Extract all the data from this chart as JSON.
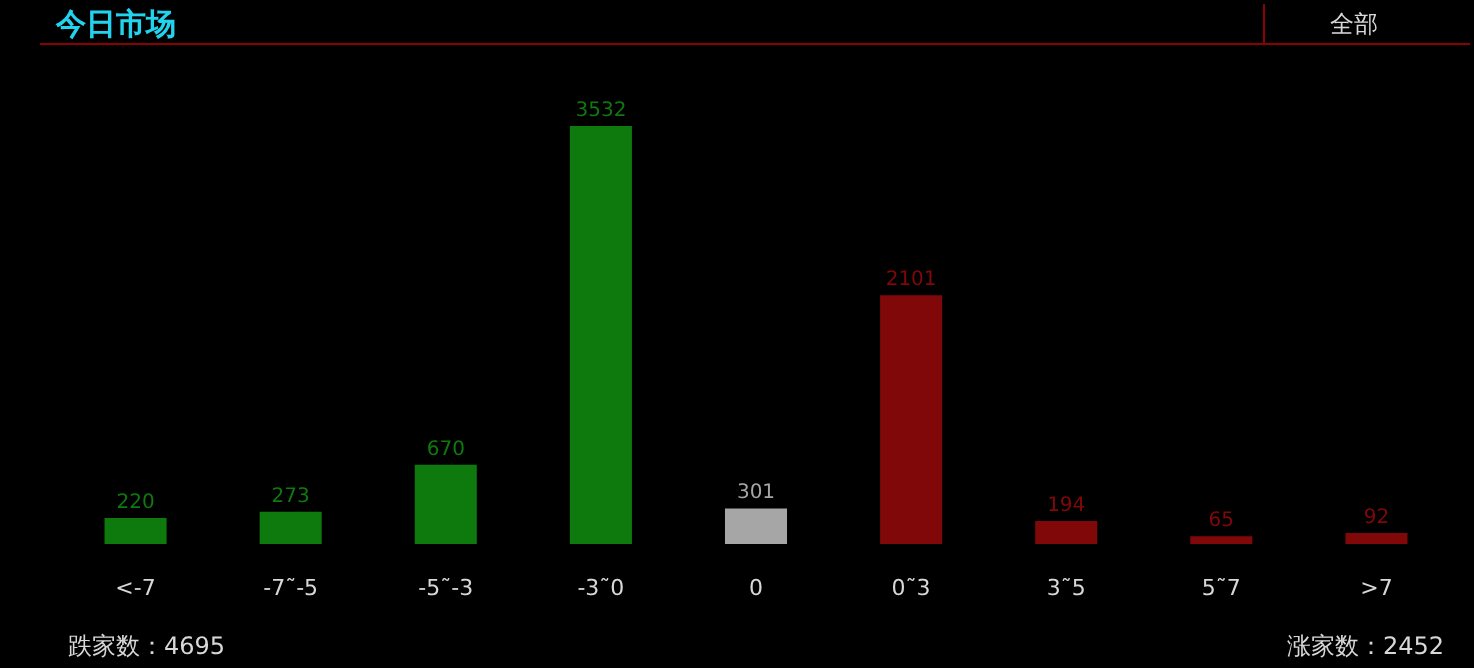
{
  "chart_data": {
    "type": "bar",
    "title": "今日市场",
    "categories": [
      "<-7",
      "-7˜-5",
      "-5˜-3",
      "-3˜0",
      "0",
      "0˜3",
      "3˜5",
      "5˜7",
      ">7"
    ],
    "values": [
      220,
      273,
      670,
      3532,
      301,
      2101,
      194,
      65,
      92
    ],
    "colors": [
      "#0e7a0e",
      "#0e7a0e",
      "#0e7a0e",
      "#0e7a0e",
      "#a6a6a6",
      "#800808",
      "#800808",
      "#800808",
      "#800808"
    ],
    "data_labels": true,
    "grid": false,
    "tick_labels": "x",
    "annotations": [
      "全部",
      "跌家数：4695",
      "涨家数：2452"
    ]
  }
}
